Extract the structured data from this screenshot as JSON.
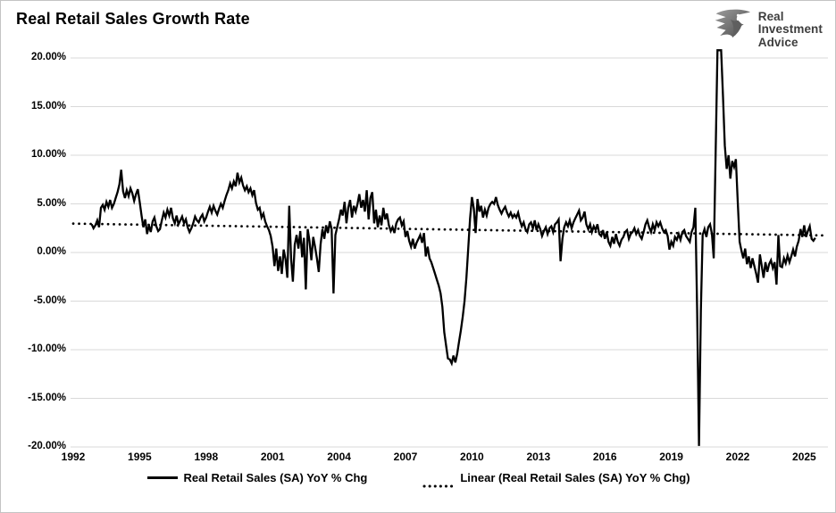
{
  "header": {
    "title": "Real Retail Sales Growth Rate"
  },
  "logo": {
    "line1": "Real",
    "line2": "Investment",
    "line3": "Advice"
  },
  "chart_data": {
    "type": "line",
    "title": "Real Retail Sales Growth Rate",
    "xlabel": "",
    "ylabel": "",
    "xlim": [
      1992,
      2026.3
    ],
    "ylim": [
      -20,
      20
    ],
    "grid": "horizontal",
    "gridline_color": "#d9d9d9",
    "line_color": "#000000",
    "x_tick_labels": [
      "1992",
      "1995",
      "1998",
      "2001",
      "2004",
      "2007",
      "2010",
      "2013",
      "2016",
      "2019",
      "2022",
      "2025"
    ],
    "x_tick_values": [
      1992,
      1995,
      1998,
      2001,
      2004,
      2007,
      2010,
      2013,
      2016,
      2019,
      2022,
      2025
    ],
    "y_tick_labels": [
      "20.00%",
      "15.00%",
      "10.00%",
      "5.00%",
      "0.00%",
      "-5.00%",
      "-10.00%",
      "-15.00%",
      "-20.00%"
    ],
    "y_tick_values": [
      20,
      15,
      10,
      5,
      0,
      -5,
      -10,
      -15,
      -20
    ],
    "legend": [
      "Real Retail Sales (SA) YoY % Chg",
      "Linear (Real Retail Sales (SA) YoY % Chg)"
    ],
    "legend_position": "bottom-center",
    "x_start": 1992.8333,
    "x_step": "monthly",
    "series": [
      {
        "name": "Real Retail Sales (SA) YoY % Chg",
        "style": "solid",
        "color": "#000000",
        "values": [
          2.9,
          2.5,
          2.8,
          3.3,
          2.6,
          4.6,
          4.9,
          4.4,
          5.2,
          4.7,
          5.4,
          4.6,
          5.0,
          5.6,
          6.2,
          7.0,
          8.5,
          6.3,
          5.6,
          6.4,
          5.8,
          6.6,
          6.1,
          5.3,
          6.0,
          6.5,
          5.2,
          3.8,
          2.6,
          3.4,
          1.9,
          2.8,
          2.1,
          3.2,
          3.6,
          2.7,
          2.2,
          2.4,
          3.3,
          4.1,
          3.6,
          4.4,
          3.8,
          4.6,
          3.5,
          3.0,
          3.8,
          2.9,
          3.3,
          3.7,
          3.0,
          3.4,
          2.6,
          2.1,
          2.5,
          3.0,
          3.7,
          3.3,
          3.1,
          3.6,
          3.9,
          3.2,
          3.6,
          4.2,
          4.7,
          4.1,
          4.8,
          4.3,
          3.9,
          4.5,
          5.0,
          4.6,
          5.3,
          5.9,
          6.4,
          7.1,
          6.6,
          7.3,
          6.8,
          8.2,
          7.2,
          7.7,
          6.9,
          6.4,
          6.8,
          6.2,
          6.6,
          5.9,
          6.4,
          5.1,
          4.4,
          4.6,
          3.6,
          4.0,
          3.2,
          2.7,
          2.3,
          1.7,
          0.6,
          -1.4,
          0.4,
          -1.9,
          -0.4,
          -2.2,
          0.3,
          -0.7,
          -2.6,
          4.8,
          -0.6,
          -3.0,
          0.8,
          1.8,
          0.4,
          2.2,
          -0.5,
          1.5,
          -3.8,
          2.4,
          1.2,
          -0.8,
          1.6,
          0.6,
          -0.6,
          -2.0,
          0.8,
          2.4,
          1.4,
          2.8,
          2.0,
          3.2,
          2.4,
          -4.2,
          1.8,
          2.6,
          3.4,
          4.4,
          3.8,
          5.2,
          3.0,
          4.6,
          5.4,
          3.6,
          4.8,
          4.2,
          5.0,
          6.0,
          4.6,
          5.4,
          4.2,
          6.4,
          3.4,
          5.6,
          6.2,
          3.0,
          4.4,
          2.6,
          3.8,
          2.8,
          4.6,
          3.4,
          4.0,
          2.8,
          2.2,
          2.6,
          2.0,
          3.0,
          3.4,
          3.6,
          2.8,
          3.2,
          1.6,
          2.2,
          1.2,
          0.6,
          1.4,
          0.4,
          1.0,
          1.4,
          1.8,
          1.0,
          2.0,
          -0.4,
          0.6,
          -0.6,
          -1.0,
          -1.6,
          -2.2,
          -2.8,
          -3.4,
          -4.2,
          -5.6,
          -8.2,
          -9.6,
          -10.9,
          -11.0,
          -11.4,
          -10.6,
          -11.3,
          -10.4,
          -9.2,
          -8.0,
          -6.6,
          -5.0,
          -2.6,
          0.5,
          3.5,
          5.7,
          4.5,
          2.0,
          5.5,
          4.2,
          4.8,
          3.6,
          4.4,
          3.8,
          4.6,
          5.0,
          5.2,
          5.0,
          5.7,
          4.9,
          4.4,
          4.0,
          4.4,
          4.7,
          4.1,
          3.7,
          4.1,
          3.6,
          3.9,
          3.6,
          4.1,
          3.3,
          2.7,
          3.1,
          2.4,
          2.1,
          2.9,
          3.1,
          2.5,
          3.3,
          2.3,
          2.9,
          2.4,
          1.7,
          2.2,
          2.6,
          1.9,
          2.5,
          2.7,
          2.1,
          2.9,
          3.1,
          3.4,
          -0.9,
          1.4,
          2.6,
          3.1,
          2.7,
          3.3,
          2.5,
          3.1,
          3.5,
          3.9,
          4.3,
          3.3,
          3.6,
          4.2,
          2.9,
          2.4,
          2.9,
          2.1,
          2.7,
          2.3,
          2.9,
          1.9,
          1.7,
          2.3,
          1.4,
          2.1,
          1.1,
          0.7,
          1.6,
          0.9,
          1.9,
          1.1,
          0.7,
          1.3,
          1.6,
          2.1,
          2.3,
          1.4,
          1.9,
          2.1,
          2.5,
          1.9,
          2.3,
          1.7,
          1.4,
          2.1,
          2.9,
          3.3,
          2.6,
          2.1,
          2.9,
          2.3,
          3.1,
          2.7,
          3.1,
          2.5,
          2.1,
          2.3,
          1.7,
          0.3,
          1.1,
          0.7,
          1.6,
          1.3,
          1.9,
          1.3,
          2.1,
          2.3,
          1.7,
          1.4,
          1.1,
          2.1,
          2.6,
          4.6,
          -5.8,
          -19.9,
          -6.0,
          1.8,
          2.4,
          1.6,
          2.6,
          2.9,
          1.9,
          -0.6,
          10.0,
          21.5,
          26.0,
          23.0,
          16.0,
          11.0,
          8.6,
          10.0,
          7.6,
          9.4,
          8.8,
          9.6,
          5.2,
          1.1,
          0.2,
          -0.6,
          0.4,
          -1.2,
          -0.4,
          -1.6,
          -0.6,
          -1.4,
          -2.2,
          -3.1,
          -0.2,
          -1.4,
          -2.6,
          -1.0,
          -2.0,
          -1.2,
          -0.8,
          -1.6,
          -1.0,
          -3.3,
          1.8,
          -1.4,
          -1.5,
          -0.6,
          -1.1,
          -0.3,
          -1.0,
          -0.4,
          0.3,
          -0.4,
          0.6,
          1.2,
          2.4,
          1.6,
          2.8,
          1.6,
          2.2,
          2.7,
          1.4,
          1.2,
          1.5
        ]
      },
      {
        "name": "Linear (Real Retail Sales (SA) YoY % Chg)",
        "style": "dotted",
        "color": "#000000",
        "trend": {
          "x1": 1992.0,
          "v1": 2.97,
          "x2": 2026.05,
          "v2": 1.75
        }
      }
    ]
  }
}
